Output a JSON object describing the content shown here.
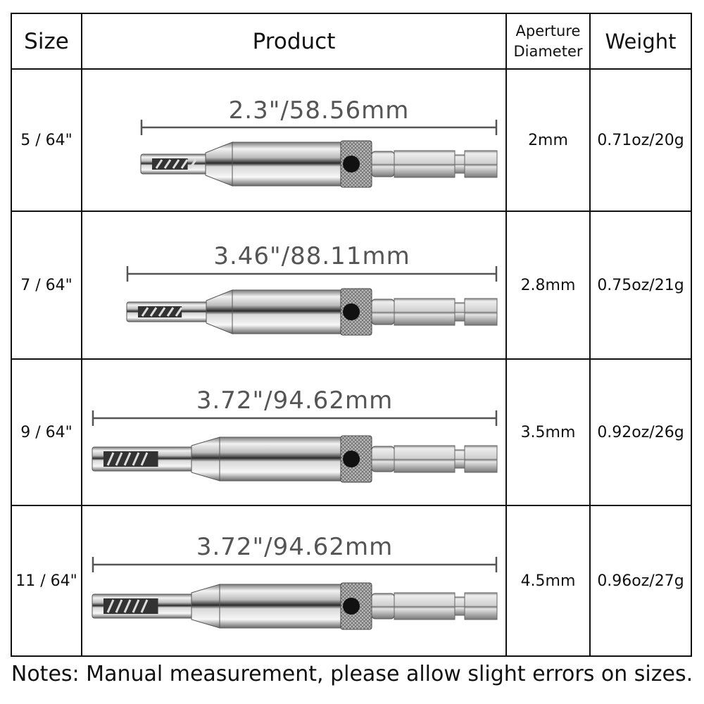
{
  "headers": {
    "size": "Size",
    "product": "Product",
    "aperture": "Aperture Diameter",
    "aperture_line1": "Aperture",
    "aperture_line2": "Diameter",
    "weight": "Weight"
  },
  "rows": [
    {
      "size": "5 / 64\"",
      "length": "2.3\"/58.56mm",
      "aperture": "2mm",
      "weight": "0.71oz/20g"
    },
    {
      "size": "7 / 64\"",
      "length": "3.46\"/88.11mm",
      "aperture": "2.8mm",
      "weight": "0.75oz/21g"
    },
    {
      "size": "9 / 64\"",
      "length": "3.72\"/94.62mm",
      "aperture": "3.5mm",
      "weight": "0.92oz/26g"
    },
    {
      "size": "11 / 64\"",
      "length": "3.72\"/94.62mm",
      "aperture": "4.5mm",
      "weight": "0.96oz/27g"
    }
  ],
  "notes": "Notes: Manual measurement, please allow slight errors on sizes.",
  "colors": {
    "border": "#111111",
    "dimension_text": "#555555",
    "steel": "#c8c8c8"
  }
}
